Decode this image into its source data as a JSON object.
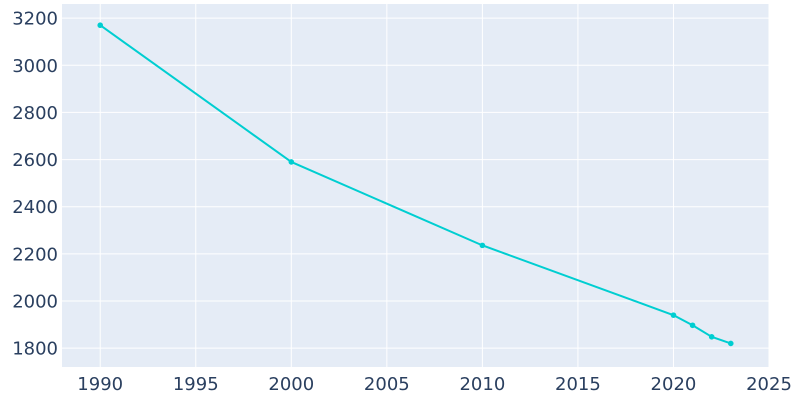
{
  "colors": {
    "plot_bg": "#e5ecf6",
    "grid": "#ffffff",
    "line": "#00ced1",
    "text": "#2a3f5f"
  },
  "chart_data": {
    "type": "line",
    "title": "",
    "xlabel": "",
    "ylabel": "",
    "xlim": [
      1988,
      2025
    ],
    "ylim": [
      1720,
      3260
    ],
    "x_ticks": [
      1990,
      1995,
      2000,
      2005,
      2010,
      2015,
      2020,
      2025
    ],
    "y_ticks": [
      1800,
      2000,
      2200,
      2400,
      2600,
      2800,
      3000,
      3200
    ],
    "grid": true,
    "legend": "none",
    "series": [
      {
        "x": [
          1990,
          2000,
          2010,
          2020,
          2021,
          2022,
          2023
        ],
        "y": [
          3170,
          2590,
          2236,
          1940,
          1897,
          1848,
          1820
        ]
      }
    ]
  }
}
